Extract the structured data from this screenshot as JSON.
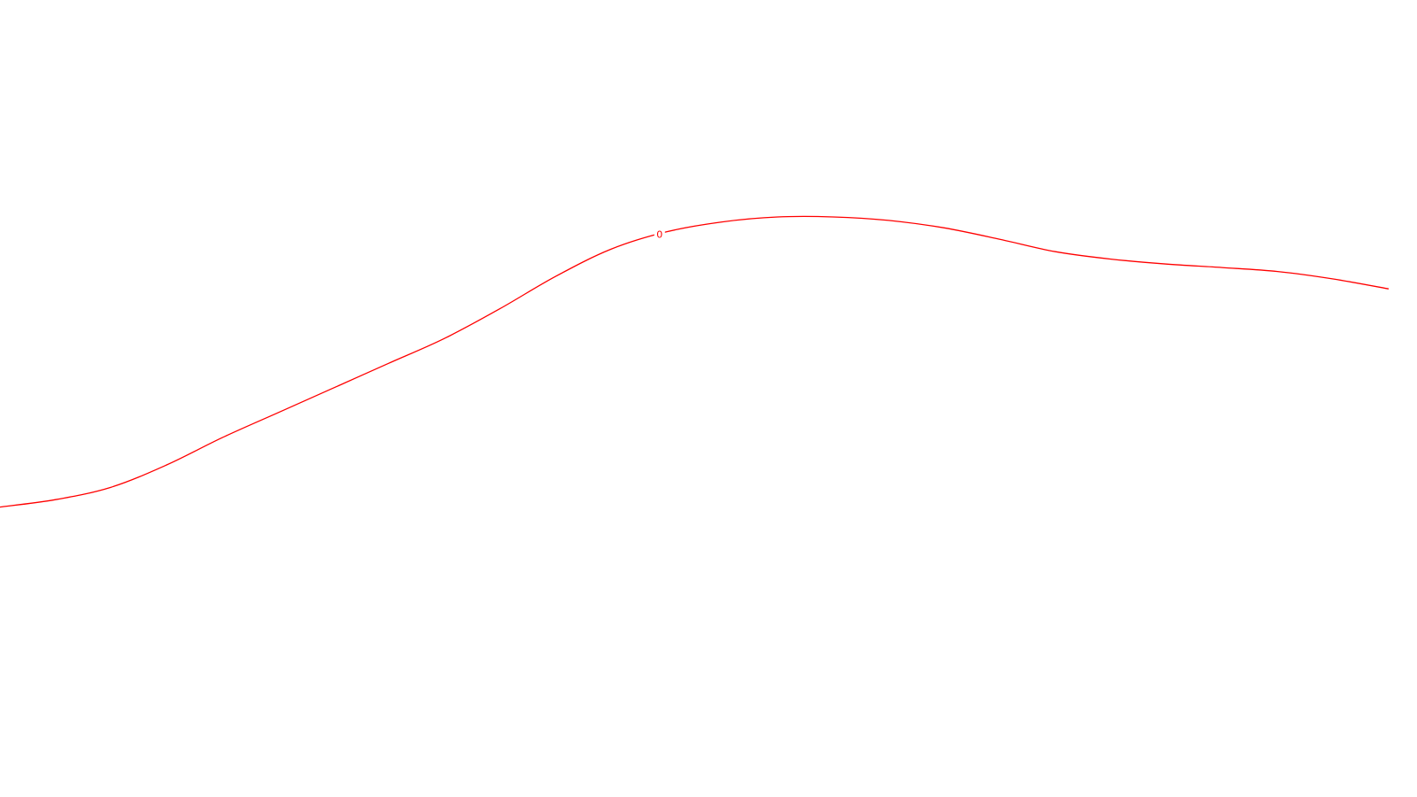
{
  "chart_data": {
    "type": "line",
    "title": "",
    "xlabel": "",
    "ylabel": "",
    "grid": false,
    "legend": "none",
    "line_color": "#ff0000",
    "background_color": "#ffffff",
    "contour_label": "0",
    "x": [
      0,
      4,
      8,
      12,
      16,
      20,
      24,
      28,
      32,
      36,
      40,
      44,
      48,
      52,
      56,
      60,
      64,
      68,
      72,
      76,
      80,
      84,
      88,
      92,
      96,
      100
    ],
    "series": [
      {
        "values": [
          4.0,
          5.5,
          8.0,
          12.5,
          18.0,
          23.0,
          28.0,
          33.0,
          38.0,
          44.0,
          50.5,
          56.0,
          59.5,
          61.5,
          62.5,
          62.5,
          61.8,
          60.3,
          58.0,
          55.5,
          54.0,
          53.0,
          52.3,
          51.5,
          50.0,
          48.0
        ]
      }
    ]
  }
}
